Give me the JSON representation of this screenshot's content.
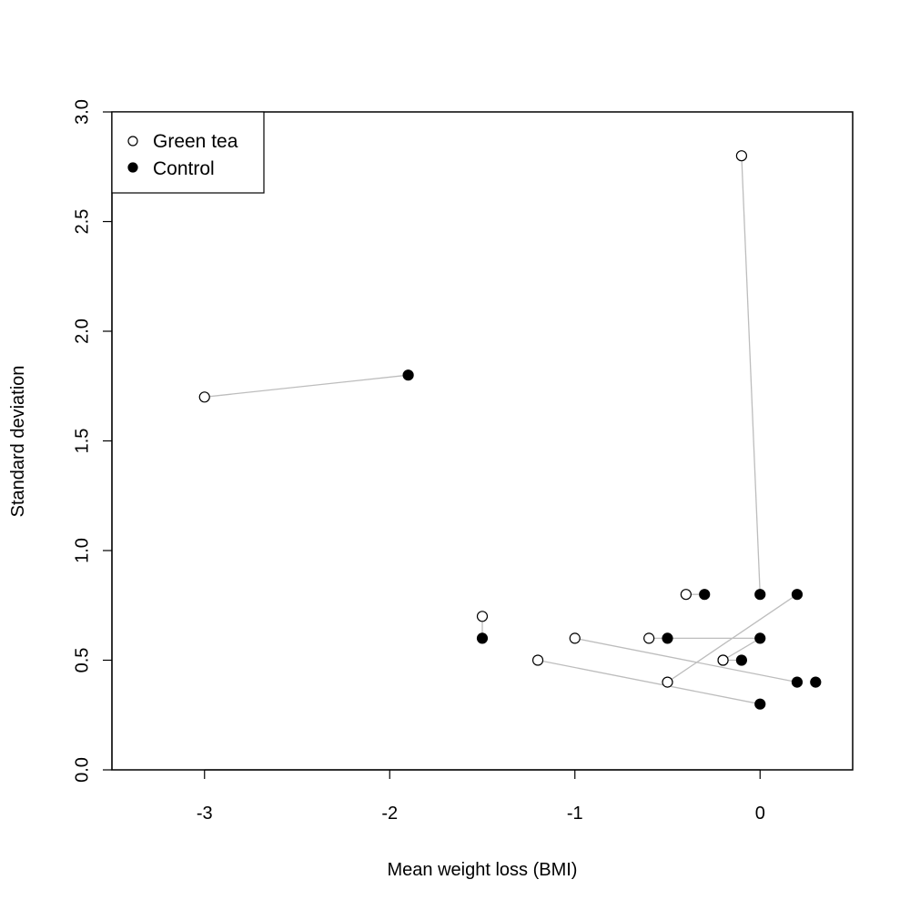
{
  "chart_data": {
    "type": "scatter",
    "title": "",
    "xlabel": "Mean weight loss (BMI)",
    "ylabel": "Standard deviation",
    "xlim": [
      -3.5,
      0.5
    ],
    "ylim": [
      0,
      3
    ],
    "xticks": [
      -3,
      -2,
      -1,
      0
    ],
    "xtick_labels": [
      "-3",
      "-2",
      "-1",
      "0"
    ],
    "yticks": [
      0,
      0.5,
      1,
      1.5,
      2,
      2.5,
      3
    ],
    "ytick_labels": [
      "0.0",
      "0.5",
      "1.0",
      "1.5",
      "2.0",
      "2.5",
      "3.0"
    ],
    "grid": false,
    "legend": {
      "position": "top-left",
      "entries": [
        {
          "name": "Green tea",
          "marker": "open-circle"
        },
        {
          "name": "Control",
          "marker": "filled-circle"
        }
      ]
    },
    "series": [
      {
        "name": "Green tea",
        "marker": "open-circle",
        "points": [
          [
            -3.0,
            1.7
          ],
          [
            -1.5,
            0.7
          ],
          [
            -1.0,
            0.6
          ],
          [
            -1.2,
            0.5
          ],
          [
            -0.6,
            0.6
          ],
          [
            -0.5,
            0.4
          ],
          [
            -0.4,
            0.8
          ],
          [
            -0.2,
            0.5
          ],
          [
            -0.2,
            0.5
          ],
          [
            -0.1,
            2.8
          ]
        ]
      },
      {
        "name": "Control",
        "marker": "filled-circle",
        "points": [
          [
            -1.9,
            1.8
          ],
          [
            -1.5,
            0.6
          ],
          [
            -0.5,
            0.6
          ],
          [
            -0.3,
            0.8
          ],
          [
            -0.1,
            0.5
          ],
          [
            0.0,
            0.8
          ],
          [
            0.0,
            0.6
          ],
          [
            0.0,
            0.3
          ],
          [
            0.2,
            0.8
          ],
          [
            0.2,
            0.4
          ],
          [
            0.3,
            0.4
          ]
        ]
      }
    ],
    "pairs": [
      [
        [
          -3.0,
          1.7
        ],
        [
          -1.9,
          1.8
        ]
      ],
      [
        [
          -1.5,
          0.7
        ],
        [
          -1.5,
          0.6
        ]
      ],
      [
        [
          -1.0,
          0.6
        ],
        [
          0.2,
          0.4
        ]
      ],
      [
        [
          -1.2,
          0.5
        ],
        [
          0.0,
          0.3
        ]
      ],
      [
        [
          -0.6,
          0.6
        ],
        [
          0.0,
          0.6
        ]
      ],
      [
        [
          -0.5,
          0.4
        ],
        [
          0.2,
          0.8
        ]
      ],
      [
        [
          -0.4,
          0.8
        ],
        [
          -0.3,
          0.8
        ]
      ],
      [
        [
          -0.2,
          0.5
        ],
        [
          -0.1,
          0.5
        ]
      ],
      [
        [
          -0.2,
          0.5
        ],
        [
          0.0,
          0.6
        ]
      ],
      [
        [
          -0.1,
          2.8
        ],
        [
          0.0,
          0.8
        ]
      ]
    ]
  }
}
